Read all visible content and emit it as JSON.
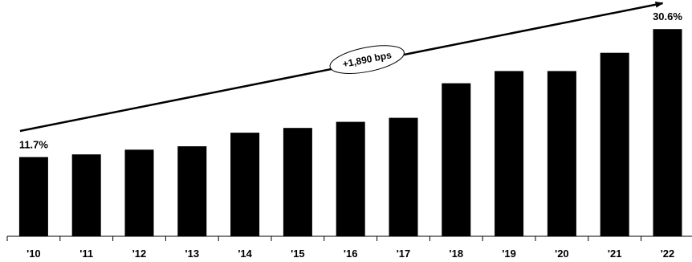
{
  "chart_data": {
    "type": "bar",
    "categories": [
      "'10",
      "'11",
      "'12",
      "'13",
      "'14",
      "'15",
      "'16",
      "'17",
      "'18",
      "'19",
      "'20",
      "'21",
      "'22"
    ],
    "values": [
      11.7,
      12.1,
      12.8,
      13.3,
      15.3,
      16.0,
      16.9,
      17.5,
      22.6,
      24.4,
      24.4,
      27.1,
      30.6
    ],
    "data_labels": [
      {
        "category": "'10",
        "text": "11.7%"
      },
      {
        "category": "'22",
        "text": "30.6%"
      }
    ],
    "annotation": {
      "text": "+1,890 bps",
      "from_category": "'10",
      "to_category": "'22"
    },
    "ylim": [
      0,
      33
    ],
    "grid": false,
    "bar_color": "#000000"
  }
}
